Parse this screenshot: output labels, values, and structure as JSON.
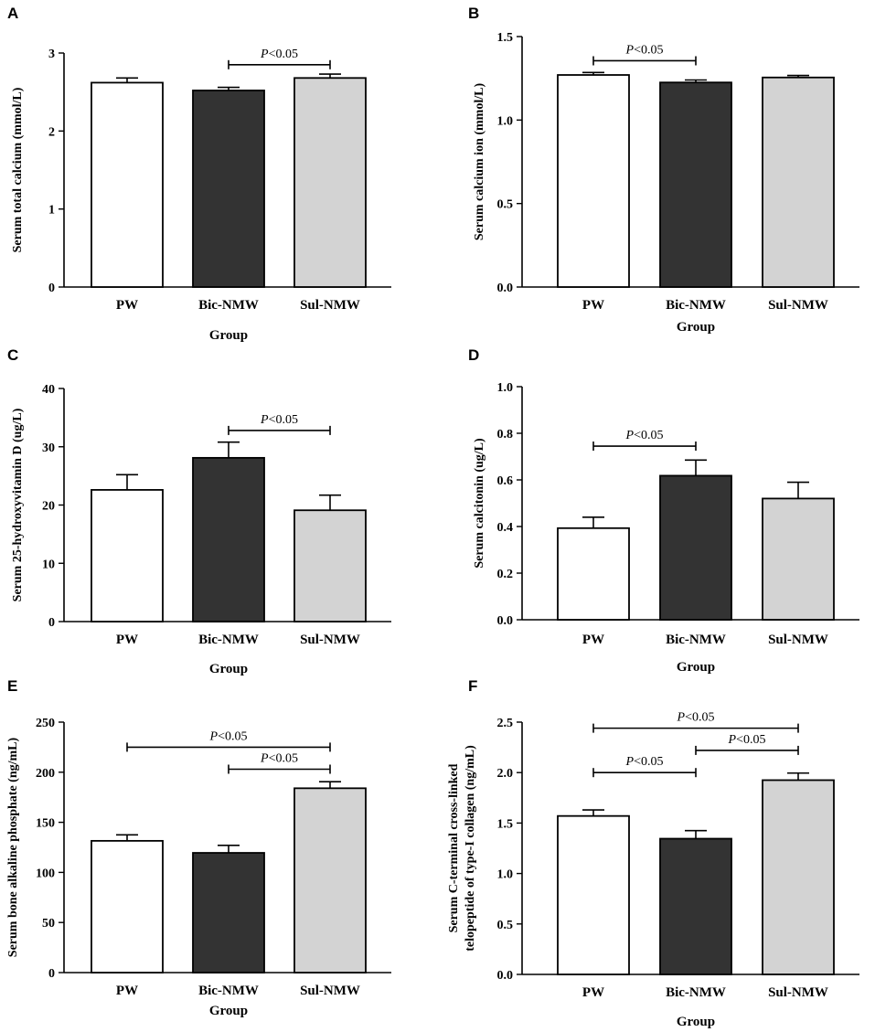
{
  "colors": {
    "PW": "#ffffff",
    "Bic-NMW": "#333333",
    "Sul-NMW": "#d3d3d3",
    "stroke": "#000000"
  },
  "chart_data": [
    {
      "type": "bar",
      "letter": "A",
      "categories": [
        "PW",
        "Bic-NMW",
        "Sul-NMW"
      ],
      "values": [
        2.62,
        2.52,
        2.68
      ],
      "errors": [
        0.06,
        0.04,
        0.05
      ],
      "ylim": [
        0,
        3
      ],
      "yticks": [
        "0",
        "1",
        "2",
        "3"
      ],
      "ytick_values": [
        0,
        1,
        2,
        3
      ],
      "xlabel": "Group",
      "ylabel": "Serum total calcium (mmol/L)",
      "comparisons": [
        {
          "from": 1,
          "to": 2,
          "level": 2.85,
          "p_label": "P",
          "p_text": "<0.05"
        }
      ]
    },
    {
      "type": "bar",
      "letter": "B",
      "categories": [
        "PW",
        "Bic-NMW",
        "Sul-NMW"
      ],
      "values": [
        1.27,
        1.225,
        1.255
      ],
      "errors": [
        0.015,
        0.015,
        0.012
      ],
      "ylim": [
        0,
        1.5
      ],
      "yticks": [
        "0.0",
        "0.5",
        "1.0",
        "1.5"
      ],
      "ytick_values": [
        0,
        0.5,
        1.0,
        1.5
      ],
      "xlabel": "Group",
      "ylabel": "Serum calcium ion (mmol/L)",
      "comparisons": [
        {
          "from": 0,
          "to": 1,
          "level": 1.355,
          "p_label": "P",
          "p_text": "<0.05"
        }
      ]
    },
    {
      "type": "bar",
      "letter": "C",
      "categories": [
        "PW",
        "Bic-NMW",
        "Sul-NMW"
      ],
      "values": [
        22.6,
        28.1,
        19.1
      ],
      "errors": [
        2.6,
        2.7,
        2.6
      ],
      "ylim": [
        0,
        40
      ],
      "yticks": [
        "0",
        "10",
        "20",
        "30",
        "40"
      ],
      "ytick_values": [
        0,
        10,
        20,
        30,
        40
      ],
      "xlabel": "Group",
      "ylabel": "Serum 25-hydroxyvitamin D (ug/L)",
      "comparisons": [
        {
          "from": 1,
          "to": 2,
          "level": 32.8,
          "p_label": "P",
          "p_text": "<0.05"
        }
      ]
    },
    {
      "type": "bar",
      "letter": "D",
      "categories": [
        "PW",
        "Bic-NMW",
        "Sul-NMW"
      ],
      "values": [
        0.393,
        0.618,
        0.52
      ],
      "errors": [
        0.047,
        0.067,
        0.07
      ],
      "ylim": [
        0,
        1.0
      ],
      "yticks": [
        "0.0",
        "0.2",
        "0.4",
        "0.6",
        "0.8",
        "1.0"
      ],
      "ytick_values": [
        0,
        0.2,
        0.4,
        0.6,
        0.8,
        1.0
      ],
      "xlabel": "Group",
      "ylabel": "Serum calcitonin (ug/L)",
      "comparisons": [
        {
          "from": 0,
          "to": 1,
          "level": 0.745,
          "p_label": "P",
          "p_text": "<0.05"
        }
      ]
    },
    {
      "type": "bar",
      "letter": "E",
      "categories": [
        "PW",
        "Bic-NMW",
        "Sul-NMW"
      ],
      "values": [
        131.5,
        119.5,
        184
      ],
      "errors": [
        6,
        7.5,
        6.5
      ],
      "ylim": [
        0,
        250
      ],
      "yticks": [
        "0",
        "50",
        "100",
        "150",
        "200",
        "250"
      ],
      "ytick_values": [
        0,
        50,
        100,
        150,
        200,
        250
      ],
      "xlabel": "Group",
      "ylabel": "Serum bone alkaline phosphate (ng/mL)",
      "comparisons": [
        {
          "from": 0,
          "to": 2,
          "level": 225,
          "p_label": "P",
          "p_text": "<0.05"
        },
        {
          "from": 1,
          "to": 2,
          "level": 203,
          "p_label": "P",
          "p_text": "<0.05"
        }
      ]
    },
    {
      "type": "bar",
      "letter": "F",
      "categories": [
        "PW",
        "Bic-NMW",
        "Sul-NMW"
      ],
      "values": [
        1.57,
        1.345,
        1.925
      ],
      "errors": [
        0.06,
        0.08,
        0.07
      ],
      "ylim": [
        0,
        2.5
      ],
      "yticks": [
        "0.0",
        "0.5",
        "1.0",
        "1.5",
        "2.0",
        "2.5"
      ],
      "ytick_values": [
        0,
        0.5,
        1.0,
        1.5,
        2.0,
        2.5
      ],
      "xlabel": "Group",
      "ylabel": "Serum C-terminal cross-linked",
      "ylabel2": "telopeptide of type-I collagen (ng/mL)",
      "comparisons": [
        {
          "from": 0,
          "to": 2,
          "level": 2.44,
          "p_label": "P",
          "p_text": "<0.05"
        },
        {
          "from": 1,
          "to": 2,
          "level": 2.22,
          "p_label": "P",
          "p_text": "<0.05"
        },
        {
          "from": 0,
          "to": 1,
          "level": 2.0,
          "p_label": "P",
          "p_text": "<0.05"
        }
      ]
    }
  ]
}
